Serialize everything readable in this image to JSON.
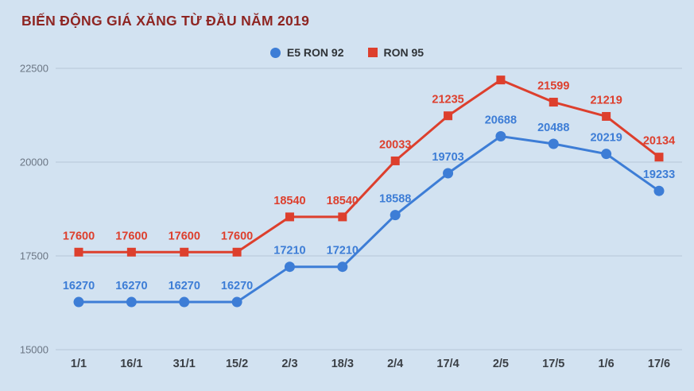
{
  "title": "BIẾN ĐỘNG GIÁ XĂNG TỪ ĐẦU NĂM 2019",
  "legend": [
    {
      "label": "E5 RON 92",
      "color": "#3d7dd6",
      "marker": "circle"
    },
    {
      "label": "RON 95",
      "color": "#dd3f2d",
      "marker": "square"
    }
  ],
  "colors": {
    "background": "#d2e2f1",
    "title": "#8e2522",
    "blue_series": "#3d7dd6",
    "red_series": "#dd3f2d",
    "grid": "#b7c7d7",
    "y_axis_text": "#6b7684",
    "x_axis_text": "#3a3f45"
  },
  "chart_data": {
    "type": "line",
    "title": "BIẾN ĐỘNG GIÁ XĂNG TỪ ĐẦU NĂM 2019",
    "categories": [
      "1/1",
      "16/1",
      "31/1",
      "15/2",
      "2/3",
      "18/3",
      "2/4",
      "17/4",
      "2/5",
      "17/5",
      "1/6",
      "17/6"
    ],
    "series": [
      {
        "name": "E5 RON 92",
        "color": "#3d7dd6",
        "marker": "circle",
        "values": [
          16270,
          16270,
          16270,
          16270,
          17210,
          17210,
          18588,
          19703,
          20688,
          20488,
          20219,
          19233
        ],
        "labels": [
          "16270",
          "16270",
          "16270",
          "16270",
          "17210",
          "17210",
          "18588",
          "19703",
          "20688",
          "20488",
          "20219",
          "19233"
        ]
      },
      {
        "name": "RON 95",
        "color": "#dd3f2d",
        "marker": "square",
        "values": [
          17600,
          17600,
          17600,
          17600,
          18540,
          18540,
          20033,
          21235,
          22190,
          21599,
          21219,
          20134
        ],
        "labels": [
          "17600",
          "17600",
          "17600",
          "17600",
          "18540",
          "18540",
          "20033",
          "21235",
          "",
          "21599",
          "21219",
          "20134"
        ]
      }
    ],
    "xlabel": "",
    "ylabel": "",
    "ylim": [
      15000,
      22500
    ],
    "yticks": [
      15000,
      17500,
      20000,
      22500
    ],
    "grid": true,
    "legend_position": "top-center"
  }
}
